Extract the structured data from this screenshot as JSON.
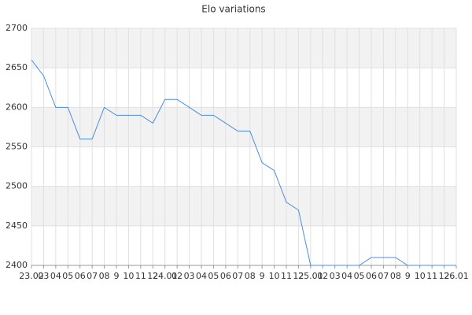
{
  "chart_data": {
    "type": "line",
    "title": "Elo variations",
    "categories": [
      "23.02",
      "03",
      "04",
      "05",
      "06",
      "07",
      "08",
      "9",
      "10",
      "11",
      "12",
      "24.01",
      "02",
      "03",
      "04",
      "05",
      "06",
      "07",
      "08",
      "9",
      "10",
      "11",
      "12",
      "25.01",
      "02",
      "03",
      "04",
      "05",
      "06",
      "07",
      "08",
      "9",
      "10",
      "11",
      "12",
      "26.01"
    ],
    "values": [
      2660,
      2640,
      2600,
      2600,
      2560,
      2560,
      2600,
      2590,
      2590,
      2590,
      2580,
      2610,
      2610,
      2600,
      2590,
      2590,
      2580,
      2570,
      2570,
      2530,
      2520,
      2480,
      2470,
      2400,
      2400,
      2400,
      2400,
      2400,
      2410,
      2410,
      2410,
      2400,
      2400,
      2400,
      2400,
      2400
    ],
    "color": "#4a8ee0",
    "ylim": [
      2400,
      2700
    ],
    "yticks": [
      2400,
      2450,
      2500,
      2550,
      2600,
      2650,
      2700
    ],
    "grid": true
  }
}
